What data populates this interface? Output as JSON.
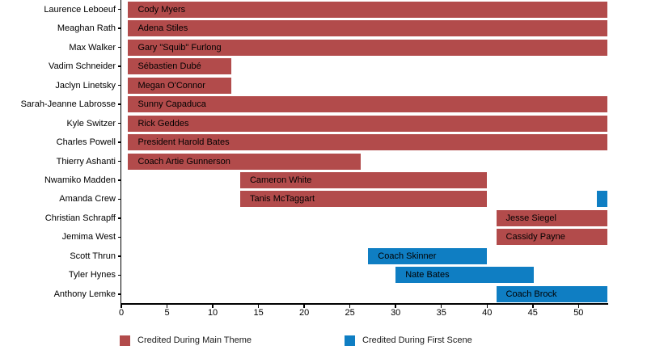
{
  "chart_data": {
    "type": "gantt",
    "title": "",
    "xlabel": "",
    "ylabel": "",
    "xlim": [
      0,
      53.2
    ],
    "x_ticks": [
      0,
      5,
      10,
      15,
      20,
      25,
      30,
      35,
      40,
      45,
      50
    ],
    "grid": false,
    "legend_position": "bottom",
    "colors": {
      "main_theme": "#b24b4b",
      "first_scene": "#0f7ec3",
      "axis": "#000000",
      "text": "#000000"
    },
    "legend": [
      {
        "kind": "main_theme",
        "label": "Credited During Main Theme"
      },
      {
        "kind": "first_scene",
        "label": "Credited During First Scene"
      }
    ],
    "rows": [
      {
        "actor": "Laurence Leboeuf",
        "character": "Cody Myers",
        "segments": [
          {
            "kind": "main_theme",
            "start": 0.75,
            "end": 53.2,
            "label": "Cody Myers"
          }
        ]
      },
      {
        "actor": "Meaghan Rath",
        "character": "Adena Stiles",
        "segments": [
          {
            "kind": "main_theme",
            "start": 0.75,
            "end": 53.2,
            "label": "Adena Stiles"
          }
        ]
      },
      {
        "actor": "Max Walker",
        "character": "Gary \"Squib\" Furlong",
        "segments": [
          {
            "kind": "main_theme",
            "start": 0.75,
            "end": 53.2,
            "label": "Gary \"Squib\" Furlong"
          }
        ]
      },
      {
        "actor": "Vadim Schneider",
        "character": "Sébastien Dubé",
        "segments": [
          {
            "kind": "main_theme",
            "start": 0.75,
            "end": 12,
            "label": "Sébastien Dubé"
          }
        ]
      },
      {
        "actor": "Jaclyn Linetsky",
        "character": "Megan O'Connor",
        "segments": [
          {
            "kind": "main_theme",
            "start": 0.75,
            "end": 12,
            "label": "Megan O'Connor"
          }
        ]
      },
      {
        "actor": "Sarah-Jeanne Labrosse",
        "character": "Sunny Capaduca",
        "segments": [
          {
            "kind": "main_theme",
            "start": 0.75,
            "end": 53.2,
            "label": "Sunny Capaduca"
          }
        ]
      },
      {
        "actor": "Kyle Switzer",
        "character": "Rick Geddes",
        "segments": [
          {
            "kind": "main_theme",
            "start": 0.75,
            "end": 53.2,
            "label": "Rick Geddes"
          }
        ]
      },
      {
        "actor": "Charles Powell",
        "character": "President Harold Bates",
        "segments": [
          {
            "kind": "main_theme",
            "start": 0.75,
            "end": 53.2,
            "label": "President Harold Bates"
          }
        ]
      },
      {
        "actor": "Thierry Ashanti",
        "character": "Coach Artie Gunnerson",
        "segments": [
          {
            "kind": "main_theme",
            "start": 0.75,
            "end": 26.2,
            "label": "Coach Artie Gunnerson"
          }
        ]
      },
      {
        "actor": "Nwamiko Madden",
        "character": "Cameron White",
        "segments": [
          {
            "kind": "main_theme",
            "start": 13,
            "end": 40,
            "label": "Cameron White"
          }
        ]
      },
      {
        "actor": "Amanda Crew",
        "character": "Tanis McTaggart",
        "segments": [
          {
            "kind": "main_theme",
            "start": 13,
            "end": 40,
            "label": "Tanis McTaggart"
          },
          {
            "kind": "first_scene",
            "start": 52,
            "end": 53.2,
            "label": ""
          }
        ]
      },
      {
        "actor": "Christian Schrapff",
        "character": "Jesse Siegel",
        "segments": [
          {
            "kind": "main_theme",
            "start": 41,
            "end": 53.2,
            "label": "Jesse Siegel"
          }
        ]
      },
      {
        "actor": "Jemima West",
        "character": "Cassidy Payne",
        "segments": [
          {
            "kind": "main_theme",
            "start": 41,
            "end": 53.2,
            "label": "Cassidy Payne"
          }
        ]
      },
      {
        "actor": "Scott Thrun",
        "character": "Coach Skinner",
        "segments": [
          {
            "kind": "first_scene",
            "start": 27,
            "end": 40,
            "label": "Coach Skinner"
          }
        ]
      },
      {
        "actor": "Tyler Hynes",
        "character": "Nate Bates",
        "segments": [
          {
            "kind": "first_scene",
            "start": 30,
            "end": 45.1,
            "label": "Nate Bates"
          }
        ]
      },
      {
        "actor": "Anthony Lemke",
        "character": "Coach Brock",
        "segments": [
          {
            "kind": "first_scene",
            "start": 41,
            "end": 53.2,
            "label": "Coach Brock"
          }
        ]
      }
    ]
  }
}
